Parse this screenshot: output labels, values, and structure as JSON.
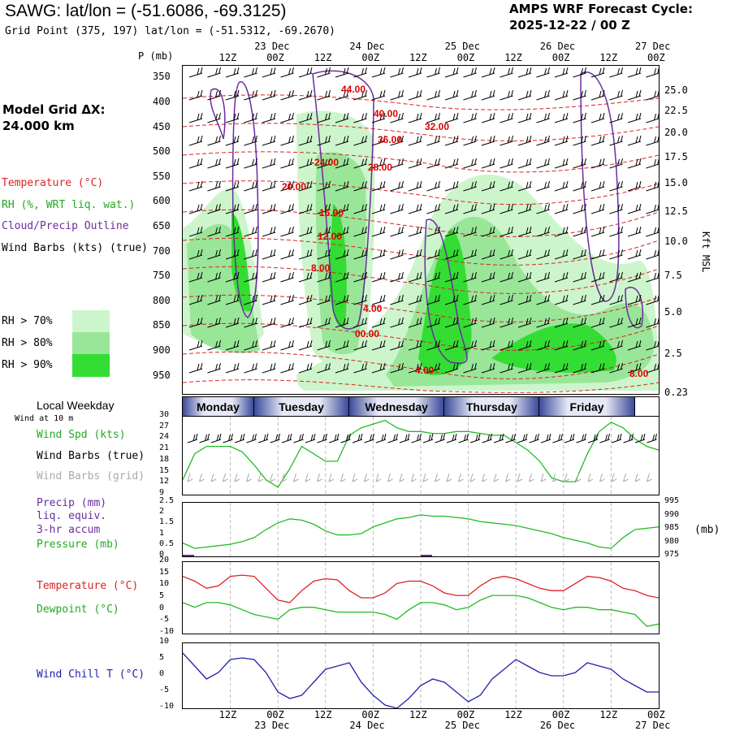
{
  "header": {
    "station_title": "SAWG:  lat/lon = (-51.6086, -69.3125)",
    "grid_point": "Grid Point (375, 197) lat/lon = (-51.5312, -69.2670)",
    "forecast_line1": "AMPS WRF Forecast Cycle:",
    "forecast_line2": "2025-12-22 / 00  Z"
  },
  "model_grid": {
    "label": "Model Grid ΔX:",
    "value": " 24.000 km"
  },
  "legend": {
    "temperature": "Temperature (°C)",
    "rh": "RH (%, WRT liq. wat.)",
    "cloud": "Cloud/Precip Outline",
    "wind": "Wind Barbs (kts) (true)",
    "rh70": "RH > 70%",
    "rh80": "RH > 80%",
    "rh90": "RH > 90%",
    "colors": {
      "rh70": "#ccf5cc",
      "rh80": "#99e699",
      "rh90": "#33dd33",
      "temp": "#dd0000",
      "cloud": "#6a2c9e"
    }
  },
  "axes": {
    "p_label": "P (mb)",
    "kft_label": "Kft MSL",
    "top_hours": [
      "12Z",
      "00Z",
      "12Z",
      "00Z",
      "12Z",
      "00Z",
      "12Z",
      "00Z",
      "12Z",
      "00Z"
    ],
    "top_dates": [
      "23 Dec",
      "24 Dec",
      "25 Dec",
      "26 Dec",
      "27 Dec"
    ],
    "bottom_hours": [
      "12Z",
      "00Z",
      "12Z",
      "00Z",
      "12Z",
      "00Z",
      "12Z",
      "00Z",
      "12Z",
      "00Z"
    ],
    "bottom_dates": [
      "23 Dec",
      "24 Dec",
      "25 Dec",
      "26 Dec",
      "27 Dec"
    ],
    "pressure_ticks": [
      "350",
      "400",
      "450",
      "500",
      "550",
      "600",
      "650",
      "700",
      "750",
      "800",
      "850",
      "900",
      "950"
    ],
    "kft_ticks": [
      "25.0",
      "22.5",
      "20.0",
      "17.5",
      "15.0",
      "12.5",
      "10.0",
      "7.5",
      "5.0",
      "2.5",
      "0.23"
    ]
  },
  "temp_labels": [
    "44.00",
    "40.00",
    "36.00",
    "32.00",
    "-24.00",
    "28.00",
    "20.00",
    "16.00",
    "12.00",
    "8.00",
    "4.00",
    "00.00",
    "4.00",
    "8.00"
  ],
  "weekday_bar": {
    "label": "Local Weekday",
    "days": [
      "Monday",
      "Tuesday",
      "Wednesday",
      "Thursday",
      "Friday"
    ]
  },
  "wind_panel": {
    "note": "Wind at 10 m",
    "spd_label": "Wind Spd (kts)",
    "barbs_true": "Wind Barbs (true)",
    "barbs_grid": "Wind Barbs (grid)",
    "ticks": [
      "30",
      "27",
      "24",
      "21",
      "18",
      "15",
      "12",
      "9"
    ]
  },
  "precip_panel": {
    "precip_label": "Precip (mm)",
    "liq_label": "liq. equiv.",
    "accum_label": "3-hr accum",
    "pressure_label": "Pressure (mb)",
    "mb_unit": "(mb)",
    "left_ticks": [
      "2.5",
      "2",
      "1.5",
      "1",
      "0.5",
      "0"
    ],
    "right_ticks": [
      "995",
      "990",
      "985",
      "980",
      "975"
    ]
  },
  "temp_panel": {
    "temp_label": "Temperature (°C)",
    "dew_label": "Dewpoint (°C)",
    "ticks": [
      "20",
      "15",
      "10",
      "5",
      "0",
      "-5",
      "-10"
    ]
  },
  "chill_panel": {
    "label": "Wind Chill T (°C)",
    "ticks": [
      "10",
      "5",
      "0",
      "-5",
      "-10"
    ]
  },
  "chart_data": [
    {
      "type": "line",
      "title": "Wind Spd (kts)",
      "x_unit": "hours since 2025-12-22 00Z",
      "x": [
        0,
        3,
        6,
        9,
        12,
        15,
        18,
        21,
        24,
        27,
        30,
        33,
        36,
        39,
        42,
        45,
        48,
        51,
        54,
        57,
        60,
        63,
        66,
        69,
        72,
        75,
        78,
        81,
        84,
        87,
        90,
        93,
        96,
        99,
        102,
        105,
        108,
        111,
        114,
        117,
        120
      ],
      "series": [
        {
          "name": "Wind Spd (kts)",
          "color": "#22bb22",
          "values": [
            13,
            20,
            22,
            22,
            22,
            20.5,
            17,
            13,
            11,
            16,
            22,
            20,
            18,
            18,
            25,
            27,
            28,
            29,
            27,
            26,
            26,
            25.5,
            25.5,
            26,
            26,
            25.5,
            25,
            25,
            23,
            21,
            18,
            13.5,
            12.5,
            12.5,
            20,
            26,
            28.5,
            27,
            24,
            22,
            21
          ]
        }
      ],
      "ylim": [
        9,
        30
      ]
    },
    {
      "type": "line",
      "title": "Pressure (mb)",
      "x": [
        0,
        3,
        6,
        9,
        12,
        15,
        18,
        21,
        24,
        27,
        30,
        33,
        36,
        39,
        42,
        45,
        48,
        51,
        54,
        57,
        60,
        63,
        66,
        69,
        72,
        75,
        78,
        81,
        84,
        87,
        90,
        93,
        96,
        99,
        102,
        105,
        108,
        111,
        114,
        117,
        120
      ],
      "series": [
        {
          "name": "Pressure (mb)",
          "color": "#22bb22",
          "values": [
            980,
            978,
            978.5,
            979,
            979.5,
            980.5,
            982,
            985,
            987.5,
            989,
            988.5,
            987,
            984.5,
            983,
            983,
            983.5,
            986,
            987.5,
            989,
            989.5,
            990.5,
            990,
            990,
            989.5,
            989,
            988,
            987.5,
            987,
            986.5,
            985.5,
            984.5,
            983.5,
            982,
            981,
            980,
            978.5,
            978,
            982,
            985,
            985.5,
            986
          ]
        },
        {
          "name": "Precip (mm)",
          "color": "#6a2c9e",
          "values": [
            0.05,
            0,
            0,
            0,
            0,
            0,
            0,
            0,
            0,
            0,
            0,
            0,
            0,
            0,
            0,
            0,
            0,
            0,
            0,
            0,
            0.03,
            0,
            0,
            0,
            0,
            0,
            0,
            0,
            0,
            0,
            0,
            0,
            0,
            0,
            0,
            0,
            0,
            0,
            0,
            0,
            0
          ]
        }
      ],
      "ylim": [
        975,
        995
      ]
    },
    {
      "type": "line",
      "title": "Temperature / Dewpoint (°C)",
      "x": [
        0,
        3,
        6,
        9,
        12,
        15,
        18,
        21,
        24,
        27,
        30,
        33,
        36,
        39,
        42,
        45,
        48,
        51,
        54,
        57,
        60,
        63,
        66,
        69,
        72,
        75,
        78,
        81,
        84,
        87,
        90,
        93,
        96,
        99,
        102,
        105,
        108,
        111,
        114,
        117,
        120
      ],
      "series": [
        {
          "name": "Temperature (°C)",
          "color": "#dd2222",
          "values": [
            14,
            12,
            9,
            10,
            14,
            14.5,
            14,
            9,
            4,
            3,
            8,
            12,
            13,
            12.5,
            8,
            5,
            5,
            7,
            11,
            12,
            12,
            10,
            7,
            6,
            6,
            10,
            13,
            14,
            13,
            11,
            9,
            8,
            8,
            11,
            14,
            13.5,
            12,
            9,
            8,
            6,
            5
          ]
        },
        {
          "name": "Dewpoint (°C)",
          "color": "#22bb22",
          "values": [
            3,
            1,
            3,
            3,
            2,
            0,
            -2,
            -3,
            -4,
            0,
            1,
            1,
            0,
            -1,
            -1,
            -1,
            -1,
            -2,
            -4,
            0,
            3,
            3,
            2,
            0,
            1,
            4,
            6,
            6,
            6,
            5,
            3,
            1,
            0,
            1,
            1,
            0,
            0,
            -1,
            -2,
            -7,
            -6
          ]
        }
      ],
      "ylim": [
        -10,
        20
      ]
    },
    {
      "type": "line",
      "title": "Wind Chill T (°C)",
      "x": [
        0,
        3,
        6,
        9,
        12,
        15,
        18,
        21,
        24,
        27,
        30,
        33,
        36,
        39,
        42,
        45,
        48,
        51,
        54,
        57,
        60,
        63,
        66,
        69,
        72,
        75,
        78,
        81,
        84,
        87,
        90,
        93,
        96,
        99,
        102,
        105,
        108,
        111,
        114,
        117,
        120
      ],
      "series": [
        {
          "name": "Wind Chill T (°C)",
          "color": "#2222aa",
          "values": [
            7,
            3,
            -1,
            1,
            5,
            5.5,
            5,
            1,
            -5,
            -7,
            -6,
            -2,
            2,
            3,
            4,
            -2,
            -6,
            -9,
            -10,
            -7,
            -3,
            -1,
            -2,
            -5,
            -8,
            -6,
            -1,
            2,
            5,
            3,
            1,
            0,
            0,
            1,
            4,
            3,
            2,
            -1,
            -3,
            -5,
            -5
          ]
        }
      ],
      "ylim": [
        -10,
        10
      ]
    }
  ]
}
